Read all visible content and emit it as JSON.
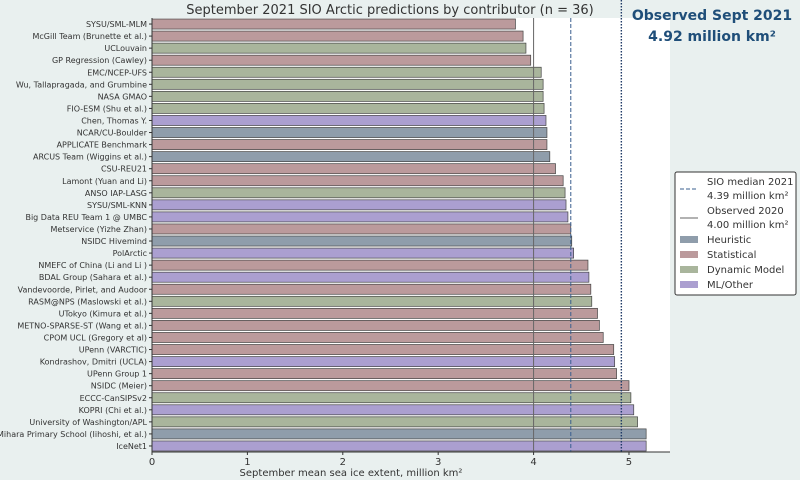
{
  "chart_data": {
    "type": "bar",
    "orientation": "horizontal",
    "title": "September 2021 SIO Arctic predictions by contributor (n = 36)",
    "xlabel": "September mean sea ice extent, million km²",
    "xlim": [
      0,
      5.43
    ],
    "xticks": [
      0,
      1,
      2,
      3,
      4,
      5
    ],
    "grid": false,
    "legend_placement": "center-right",
    "categories": [
      "SYSU/SML-MLM",
      "McGill Team (Brunette et al.)",
      "UCLouvain",
      "GP Regression (Cawley)",
      "EMC/NCEP-UFS",
      "Wu, Tallapragada, and Grumbine",
      "NASA GMAO",
      "FIO-ESM (Shu et al.)",
      "Chen, Thomas Y.",
      "NCAR/CU-Boulder",
      "APPLICATE Benchmark",
      "ARCUS Team (Wiggins et al.)",
      "CSU-REU21",
      "Lamont (Yuan and Li)",
      "ANSO IAP-LASG",
      "SYSU/SML-KNN",
      "Big Data REU Team 1 @ UMBC",
      "Metservice (Yizhe Zhan)",
      "NSIDC Hivemind",
      "PolArctic",
      "NMEFC of China (Li and Li )",
      "BDAL Group (Sahara et al.)",
      "Vandevoorde, Pirlet, and Audoor",
      "RASM@NPS (Maslowski et al.)",
      "UTokyo (Kimura et al.)",
      "METNO-SPARSE-ST (Wang et al.)",
      "CPOM UCL (Gregory et al)",
      "UPenn (VARCTIC)",
      "Kondrashov, Dmitri (UCLA)",
      "UPenn Group 1",
      "NSIDC (Meier)",
      "ECCC-CanSIPSv2",
      "KOPRI (Chi et al.)",
      "University of Washington/APL",
      "Mihara Primary School (Iihoshi, et al.)",
      "IceNet1"
    ],
    "values": [
      3.81,
      3.89,
      3.92,
      3.97,
      4.08,
      4.1,
      4.1,
      4.11,
      4.13,
      4.14,
      4.14,
      4.17,
      4.23,
      4.31,
      4.33,
      4.34,
      4.36,
      4.39,
      4.4,
      4.42,
      4.57,
      4.58,
      4.6,
      4.61,
      4.67,
      4.69,
      4.73,
      4.84,
      4.85,
      4.87,
      5.0,
      5.02,
      5.05,
      5.09,
      5.18,
      5.18
    ],
    "method": [
      "Statistical",
      "Statistical",
      "Dynamic Model",
      "Statistical",
      "Dynamic Model",
      "Dynamic Model",
      "Dynamic Model",
      "Dynamic Model",
      "ML/Other",
      "Heuristic",
      "Statistical",
      "Heuristic",
      "Statistical",
      "Statistical",
      "Dynamic Model",
      "ML/Other",
      "ML/Other",
      "Statistical",
      "Heuristic",
      "ML/Other",
      "Statistical",
      "ML/Other",
      "Statistical",
      "Dynamic Model",
      "Statistical",
      "Statistical",
      "Statistical",
      "Statistical",
      "ML/Other",
      "Statistical",
      "Statistical",
      "Dynamic Model",
      "ML/Other",
      "Dynamic Model",
      "Heuristic",
      "ML/Other"
    ],
    "method_colors": {
      "Heuristic": "#8f9dab",
      "Statistical": "#bb9a9c",
      "Dynamic Model": "#a9b59c",
      "ML/Other": "#ab9fd0"
    },
    "reference_lines": [
      {
        "label": "SIO median 2021",
        "value_label": "4.39 million km²",
        "value": 4.39,
        "style": "dashed",
        "color": "#3a5f8f"
      },
      {
        "label": "Observed 2020",
        "value_label": "4.00 million km²",
        "value": 4.0,
        "style": "solid",
        "color": "#666666"
      },
      {
        "label": "Observed Sept 2021",
        "value_label": "4.92 million km²",
        "value": 4.92,
        "style": "dotted",
        "color": "#1f3a66"
      }
    ],
    "legend": [
      "Heuristic",
      "Statistical",
      "Dynamic Model",
      "ML/Other"
    ],
    "annotation_color": "#1f4e79"
  }
}
